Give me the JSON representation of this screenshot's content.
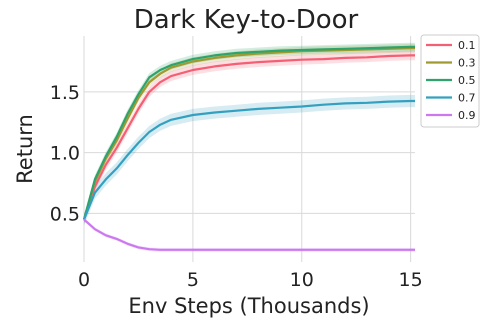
{
  "chart_data": {
    "type": "line",
    "title": "Dark Key-to-Door",
    "xlabel": "Env Steps (Thousands)",
    "ylabel": "Return",
    "xlim": [
      0,
      15.2
    ],
    "ylim": [
      0.1,
      1.96
    ],
    "xticks": [
      0,
      5,
      10,
      15
    ],
    "xtick_labels": [
      "0",
      "5",
      "10",
      "15"
    ],
    "yticks": [
      0.5,
      1.0,
      1.5
    ],
    "ytick_labels": [
      "0.5",
      "1.0",
      "1.5"
    ],
    "grid": true,
    "legend_position": "outside-top-right",
    "x": [
      0,
      0.5,
      1,
      1.5,
      2,
      2.5,
      3,
      3.5,
      4,
      5,
      6,
      7,
      8,
      9,
      10,
      11,
      12,
      13,
      14,
      15,
      15.2
    ],
    "series": [
      {
        "name": "0.1",
        "color": "#f45f74",
        "values": [
          0.45,
          0.72,
          0.9,
          1.04,
          1.2,
          1.36,
          1.5,
          1.58,
          1.63,
          1.68,
          1.71,
          1.73,
          1.745,
          1.755,
          1.765,
          1.77,
          1.78,
          1.785,
          1.795,
          1.8,
          1.8
        ],
        "band": 0.04
      },
      {
        "name": "0.3",
        "color": "#9f9a2f",
        "values": [
          0.45,
          0.76,
          0.95,
          1.1,
          1.28,
          1.45,
          1.58,
          1.65,
          1.7,
          1.75,
          1.78,
          1.8,
          1.815,
          1.825,
          1.835,
          1.84,
          1.845,
          1.85,
          1.855,
          1.86,
          1.86
        ],
        "band": 0.035
      },
      {
        "name": "0.5",
        "color": "#2fa36b",
        "values": [
          0.45,
          0.78,
          0.97,
          1.13,
          1.32,
          1.48,
          1.62,
          1.68,
          1.72,
          1.77,
          1.8,
          1.82,
          1.83,
          1.84,
          1.845,
          1.85,
          1.855,
          1.86,
          1.865,
          1.87,
          1.87
        ],
        "band": 0.035
      },
      {
        "name": "0.7",
        "color": "#34a0bf",
        "values": [
          0.45,
          0.67,
          0.78,
          0.87,
          0.98,
          1.08,
          1.17,
          1.23,
          1.27,
          1.31,
          1.33,
          1.345,
          1.36,
          1.37,
          1.38,
          1.395,
          1.405,
          1.41,
          1.42,
          1.425,
          1.425
        ],
        "band": 0.05
      },
      {
        "name": "0.9",
        "color": "#cc79f0",
        "values": [
          0.45,
          0.37,
          0.32,
          0.29,
          0.25,
          0.22,
          0.205,
          0.2,
          0.2,
          0.2,
          0.2,
          0.2,
          0.2,
          0.2,
          0.2,
          0.2,
          0.2,
          0.2,
          0.2,
          0.2,
          0.2
        ],
        "band": 0.015
      }
    ]
  }
}
